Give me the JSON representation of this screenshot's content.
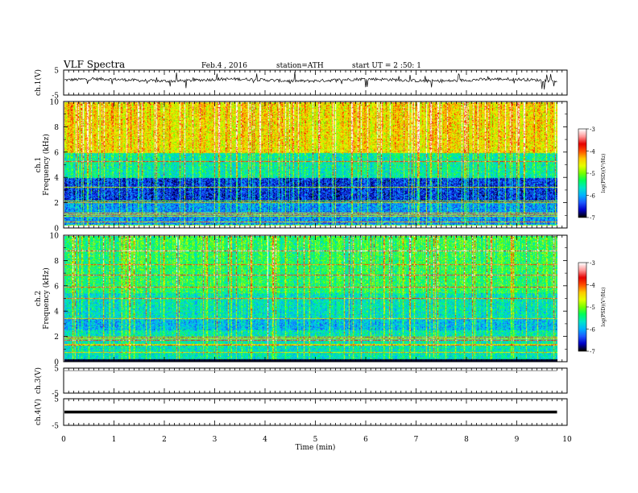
{
  "header": {
    "title": "VLF Spectra",
    "date": "Feb.4 , 2016",
    "station": "station=ATH",
    "start": "start UT = 2 :50: 1"
  },
  "colors": {
    "axis": "#000000",
    "trace_ch3": "#888888",
    "trace_ch4": "#000000",
    "colormap": [
      "#000000",
      "#0000c8",
      "#1e5aff",
      "#00b4ff",
      "#00e6c8",
      "#00ff5a",
      "#78ff00",
      "#e6ff00",
      "#ffc800",
      "#ff5000",
      "#e60000",
      "#ff9696",
      "#ffffff"
    ]
  },
  "chart_data": [
    {
      "id": "ch1-waveform",
      "type": "line",
      "ylabel": "ch.1(V)",
      "ylim": [
        -5,
        5
      ],
      "yticks": [
        5,
        -5
      ],
      "xlim": [
        0,
        10
      ],
      "x_data_extent_min": 9.8,
      "description_of_trace": "noisy waveform near +1 V with impulsive spikes"
    },
    {
      "id": "ch1-spectrogram",
      "type": "heatmap",
      "ylabel_line1": "ch.1",
      "ylabel_line2": "Frequency (kHz)",
      "ylim": [
        0,
        10
      ],
      "yticks": [
        0,
        2,
        4,
        6,
        8,
        10
      ],
      "xlim": [
        0,
        10
      ],
      "colorbar": {
        "label": "log(PSD)(V²/Hz)",
        "range": [
          -7,
          -3
        ],
        "ticks": [
          -3,
          -4,
          -5,
          -6,
          -7
        ]
      }
    },
    {
      "id": "ch2-spectrogram",
      "type": "heatmap",
      "ylabel_line1": "ch.2",
      "ylabel_line2": "Frequency (kHz)",
      "ylim": [
        0,
        10
      ],
      "yticks": [
        0,
        2,
        4,
        6,
        8,
        10
      ],
      "xlim": [
        0,
        10
      ],
      "colorbar": {
        "label": "log(PSD)(V²/Hz)",
        "range": [
          -7,
          -3
        ],
        "ticks": [
          -3,
          -4,
          -5,
          -6,
          -7
        ]
      }
    },
    {
      "id": "ch3-waveform",
      "type": "line",
      "ylabel": "ch.3(V)",
      "ylim": [
        -5,
        5
      ],
      "yticks": [
        5,
        -5
      ],
      "xlim": [
        0,
        10
      ],
      "level": 4.0
    },
    {
      "id": "ch4-waveform",
      "type": "line",
      "ylabel": "ch.4(V)",
      "ylim": [
        -5,
        5
      ],
      "yticks": [
        5,
        -5
      ],
      "xlim": [
        0,
        10
      ],
      "level": 0.0
    }
  ],
  "xaxis": {
    "label": "Time (min)",
    "ticks": [
      "0",
      "1",
      "2",
      "3",
      "4",
      "5",
      "6",
      "7",
      "8",
      "9",
      "10"
    ]
  }
}
